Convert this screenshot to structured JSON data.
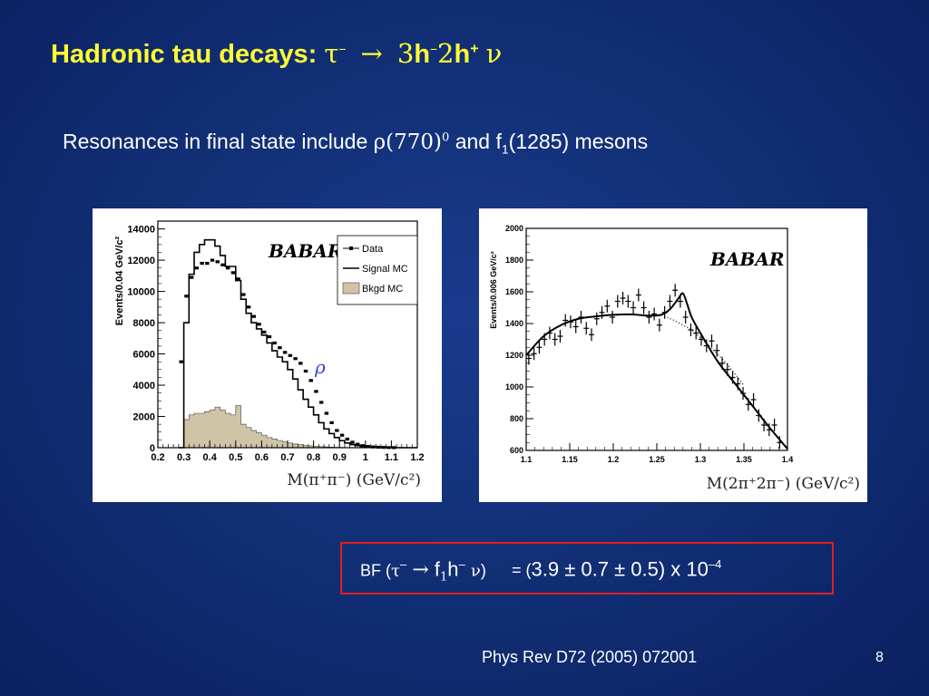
{
  "title": {
    "text": "Hadronic tau decays:",
    "sym_tau": "τ",
    "sym_minus": "–",
    "arrow": "→",
    "three": "3",
    "h1": "h",
    "two": "2",
    "h2": "h",
    "plus": "+",
    "nu": "ν"
  },
  "subtitle": {
    "text1": "Resonances in final state include ",
    "rho": "ρ(770)",
    "rho_sup": "0",
    "text2": " and f",
    "f_sub": "1",
    "text3": "(1285) mesons"
  },
  "bf": {
    "label": "BF (",
    "tau": "τ",
    "tau_sup": "–",
    "arrow": "→",
    "f": "f",
    "f_sub": "1",
    "h": "h",
    "h_sup": "–",
    "nu": "ν",
    "close": ")",
    "eq": "= (",
    "value": "3.9 ± 0.7 ± 0.5) x 10",
    "exp": "–4"
  },
  "reference": "Phys Rev D72 (2005) 072001",
  "page_number": "8",
  "colors": {
    "title": "#ffff33",
    "box_border": "#e01f1f",
    "bkgd_fill": "#cfc5a6",
    "rho_label": "#3344cc"
  },
  "chart_data": [
    {
      "type": "bar",
      "logo": "BABAR",
      "ylabel": "Events/0.04 GeV/c²",
      "xlabel": "M(π⁺π⁻) (GeV/c²)",
      "xlim": [
        0.2,
        1.2
      ],
      "ylim": [
        0,
        14500
      ],
      "xticks": [
        "0.2",
        "0.3",
        "0.4",
        "0.5",
        "0.6",
        "0.7",
        "0.8",
        "0.9",
        "1",
        "1.1",
        "1.2"
      ],
      "yticks": [
        "0",
        "2000",
        "4000",
        "6000",
        "8000",
        "10000",
        "12000",
        "14000"
      ],
      "annotation": "ρ",
      "legend": [
        "Data",
        "Signal MC",
        "Bkgd MC"
      ],
      "legend_position": "top-right",
      "bins": [
        0.28,
        0.3,
        0.32,
        0.34,
        0.36,
        0.38,
        0.4,
        0.42,
        0.44,
        0.46,
        0.48,
        0.5,
        0.52,
        0.54,
        0.56,
        0.58,
        0.6,
        0.62,
        0.64,
        0.66,
        0.68,
        0.7,
        0.72,
        0.74,
        0.76,
        0.78,
        0.8,
        0.82,
        0.84,
        0.86,
        0.88,
        0.9,
        0.92,
        0.94,
        0.96,
        0.98,
        1.0,
        1.02,
        1.04,
        1.06,
        1.08,
        1.1,
        1.12,
        1.14,
        1.16,
        1.18,
        1.2
      ],
      "signal_mc": [
        0,
        8000,
        11100,
        12500,
        13000,
        13300,
        13300,
        12900,
        12300,
        11600,
        11600,
        10700,
        9500,
        8600,
        8000,
        7600,
        7200,
        6700,
        6200,
        5800,
        5500,
        5000,
        4400,
        3700,
        3100,
        2600,
        2100,
        1600,
        1200,
        900,
        650,
        450,
        300,
        200,
        130,
        80,
        50,
        30,
        20,
        10,
        5,
        0,
        0,
        0,
        0,
        0
      ],
      "bkgd_mc": [
        0,
        1800,
        2100,
        2200,
        2200,
        2300,
        2400,
        2600,
        2400,
        2200,
        2100,
        2700,
        1500,
        1300,
        1100,
        950,
        800,
        650,
        550,
        460,
        380,
        300,
        240,
        190,
        150,
        120,
        90,
        70,
        50,
        35,
        25,
        15,
        10,
        5,
        0,
        0,
        0,
        0,
        0,
        0,
        0,
        0,
        0,
        0,
        0,
        0
      ],
      "data_x": [
        0.29,
        0.31,
        0.33,
        0.35,
        0.37,
        0.39,
        0.41,
        0.43,
        0.45,
        0.47,
        0.49,
        0.51,
        0.53,
        0.55,
        0.57,
        0.59,
        0.61,
        0.63,
        0.65,
        0.67,
        0.69,
        0.71,
        0.73,
        0.75,
        0.77,
        0.79,
        0.81,
        0.83,
        0.85,
        0.87,
        0.89,
        0.91,
        0.93,
        0.95,
        0.97,
        0.99,
        1.01,
        1.03,
        1.05,
        1.07,
        1.09,
        1.11,
        1.13,
        1.15
      ],
      "data_y": [
        5500,
        9700,
        10900,
        11500,
        11800,
        11800,
        12000,
        11900,
        11700,
        11500,
        11200,
        10800,
        9800,
        9000,
        8400,
        7900,
        7400,
        7100,
        6700,
        6400,
        6100,
        5900,
        5700,
        5400,
        4900,
        4300,
        3600,
        2900,
        2200,
        1600,
        1100,
        800,
        550,
        350,
        220,
        130,
        80,
        50,
        30,
        20,
        10,
        5,
        0,
        0
      ]
    },
    {
      "type": "scatter",
      "logo": "BABAR",
      "ylabel": "Events/0.006 GeV/c²",
      "xlabel": "M(2π⁺2π⁻) (GeV/c²)",
      "xlim": [
        1.1,
        1.4
      ],
      "ylim": [
        600,
        2000
      ],
      "xticks": [
        "1.1",
        "1.15",
        "1.2",
        "1.25",
        "1.3",
        "1.35",
        "1.4"
      ],
      "yticks": [
        "600",
        "800",
        "1000",
        "1200",
        "1400",
        "1600",
        "1800",
        "2000"
      ],
      "x": [
        1.103,
        1.109,
        1.115,
        1.121,
        1.127,
        1.133,
        1.139,
        1.145,
        1.151,
        1.157,
        1.163,
        1.169,
        1.175,
        1.181,
        1.187,
        1.193,
        1.199,
        1.205,
        1.211,
        1.217,
        1.223,
        1.229,
        1.235,
        1.241,
        1.247,
        1.253,
        1.259,
        1.265,
        1.271,
        1.277,
        1.283,
        1.289,
        1.295,
        1.301,
        1.307,
        1.313,
        1.319,
        1.325,
        1.331,
        1.337,
        1.343,
        1.349,
        1.355,
        1.361,
        1.367,
        1.373,
        1.379,
        1.385,
        1.391
      ],
      "y": [
        1180,
        1210,
        1250,
        1300,
        1340,
        1300,
        1320,
        1420,
        1410,
        1380,
        1440,
        1370,
        1330,
        1430,
        1470,
        1510,
        1440,
        1540,
        1560,
        1540,
        1500,
        1580,
        1500,
        1440,
        1460,
        1390,
        1470,
        1540,
        1610,
        1540,
        1440,
        1360,
        1340,
        1300,
        1260,
        1290,
        1230,
        1150,
        1110,
        1060,
        1020,
        960,
        890,
        920,
        820,
        760,
        730,
        760,
        650
      ],
      "fit": [
        [
          1.1,
          1200
        ],
        [
          1.12,
          1320
        ],
        [
          1.14,
          1390
        ],
        [
          1.16,
          1430
        ],
        [
          1.18,
          1445
        ],
        [
          1.2,
          1455
        ],
        [
          1.22,
          1458
        ],
        [
          1.24,
          1450
        ],
        [
          1.255,
          1455
        ],
        [
          1.265,
          1490
        ],
        [
          1.275,
          1560
        ],
        [
          1.28,
          1590
        ],
        [
          1.285,
          1520
        ],
        [
          1.29,
          1440
        ],
        [
          1.3,
          1340
        ],
        [
          1.32,
          1160
        ],
        [
          1.34,
          1020
        ],
        [
          1.36,
          880
        ],
        [
          1.38,
          740
        ],
        [
          1.4,
          610
        ]
      ],
      "background": [
        [
          1.255,
          1455
        ],
        [
          1.27,
          1420
        ],
        [
          1.29,
          1360
        ],
        [
          1.31,
          1260
        ],
        [
          1.33,
          1150
        ],
        [
          1.35,
          1010
        ]
      ]
    }
  ]
}
